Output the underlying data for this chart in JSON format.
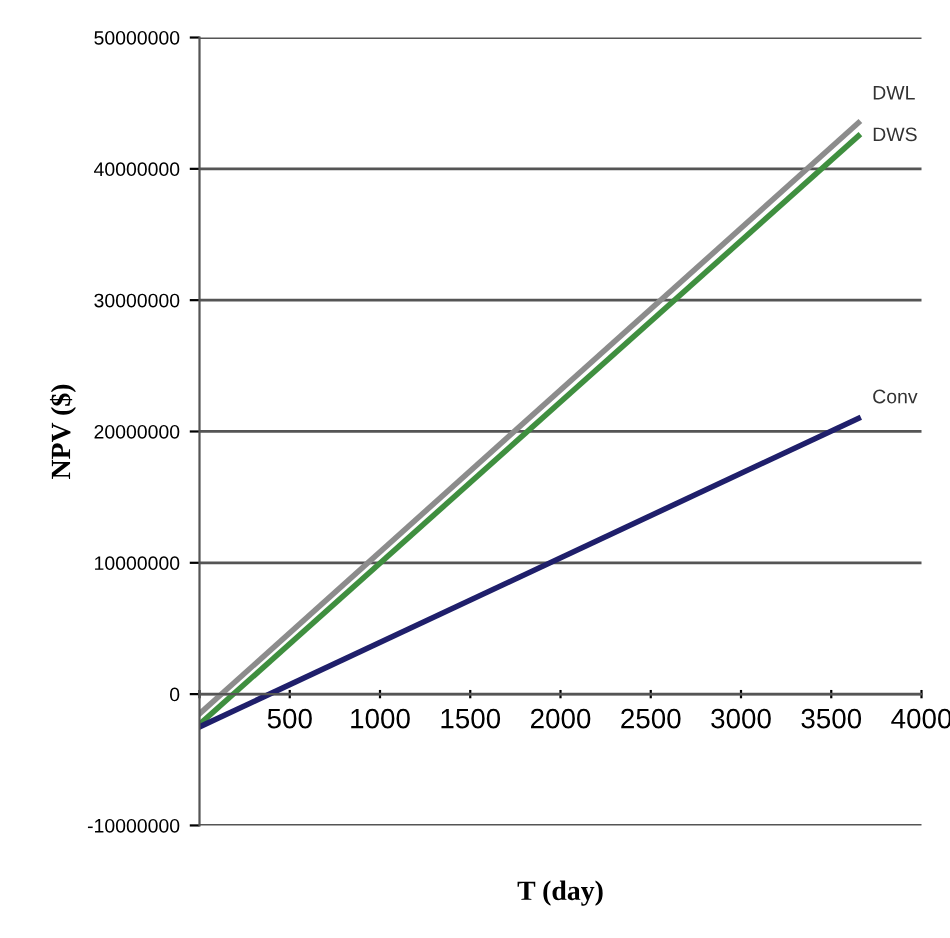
{
  "chart_data": {
    "type": "line",
    "xlabel": "T (day)",
    "ylabel": "NPV ($)",
    "xlim": [
      0,
      4000
    ],
    "xticks": [
      {
        "value": 0,
        "label": null
      },
      500,
      1000,
      1500,
      2000,
      2500,
      3000,
      3500,
      4000
    ],
    "ylim": [
      -10000000,
      50000000
    ],
    "yticks": [
      -10000000,
      0,
      10000000,
      20000000,
      30000000,
      40000000,
      50000000
    ],
    "grid": "y",
    "legend": false,
    "marker": "none",
    "line_style": "solid",
    "x": [
      0,
      3650
    ],
    "series": [
      {
        "name": "DWL",
        "color": "#8c8c8c",
        "values": [
          -1500000,
          43500000
        ]
      },
      {
        "name": "DWS",
        "color": "#3f8f3f",
        "values": [
          -2300000,
          42500000
        ]
      },
      {
        "name": "Conv",
        "color": "#1f1f6b",
        "values": [
          -2500000,
          21000000
        ]
      }
    ]
  }
}
